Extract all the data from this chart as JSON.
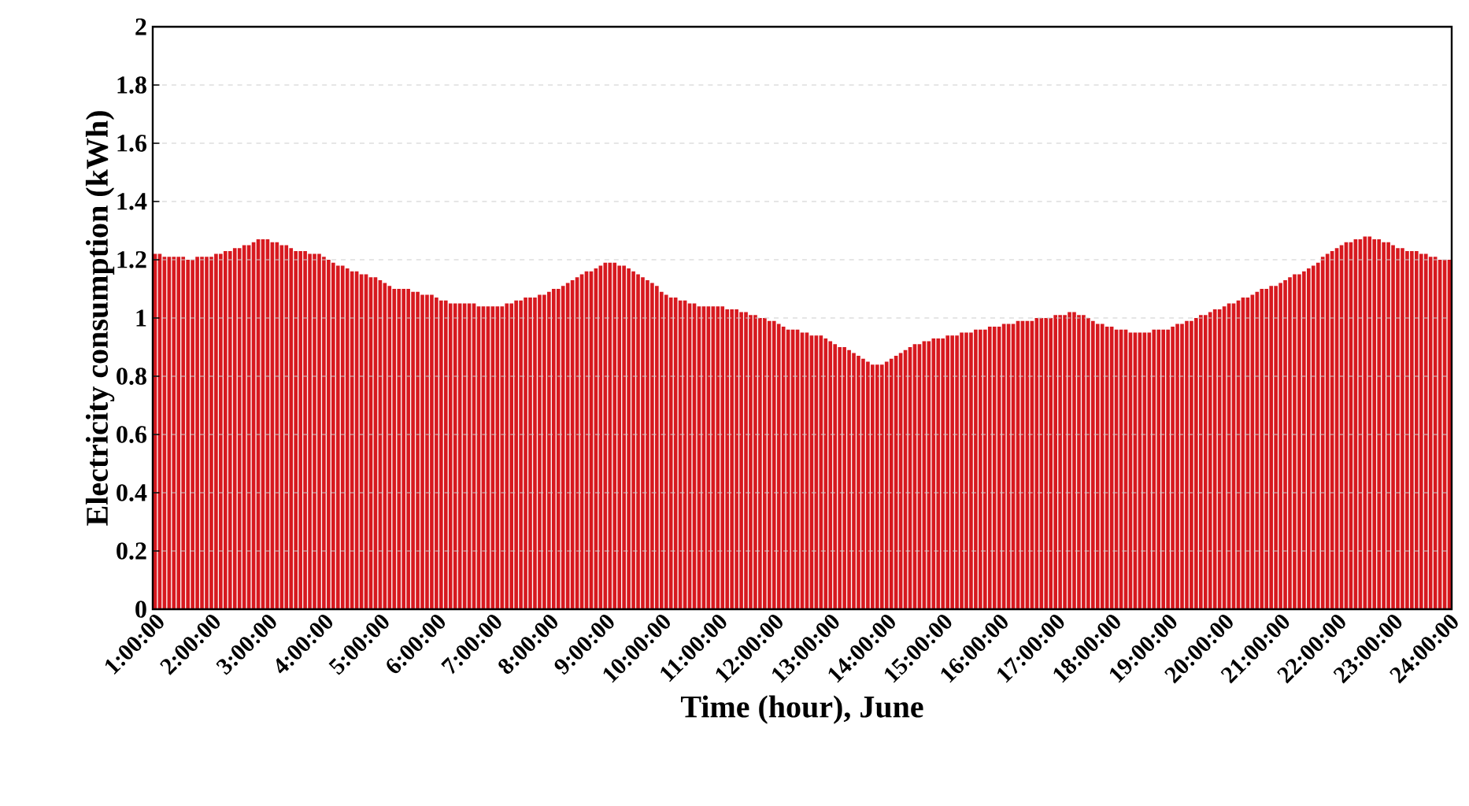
{
  "chart_data": {
    "type": "bar",
    "xlabel": "Time (hour), June",
    "ylabel": "Electricity consumption (kWh)",
    "color": "#d7191f",
    "grid": "y",
    "ylim": [
      0,
      2
    ],
    "yticks": [
      0,
      0.2,
      0.4,
      0.6,
      0.8,
      1,
      1.2,
      1.4,
      1.6,
      1.8,
      2
    ],
    "categories": [
      "1:00:00",
      null,
      null,
      null,
      null,
      null,
      null,
      null,
      null,
      null,
      null,
      null,
      "2:00:00",
      null,
      null,
      null,
      null,
      null,
      null,
      null,
      null,
      null,
      null,
      null,
      "3:00:00",
      null,
      null,
      null,
      null,
      null,
      null,
      null,
      null,
      null,
      null,
      null,
      "4:00:00",
      null,
      null,
      null,
      null,
      null,
      null,
      null,
      null,
      null,
      null,
      null,
      "5:00:00",
      null,
      null,
      null,
      null,
      null,
      null,
      null,
      null,
      null,
      null,
      null,
      "6:00:00",
      null,
      null,
      null,
      null,
      null,
      null,
      null,
      null,
      null,
      null,
      null,
      "7:00:00",
      null,
      null,
      null,
      null,
      null,
      null,
      null,
      null,
      null,
      null,
      null,
      "8:00:00",
      null,
      null,
      null,
      null,
      null,
      null,
      null,
      null,
      null,
      null,
      null,
      "9:00:00",
      null,
      null,
      null,
      null,
      null,
      null,
      null,
      null,
      null,
      null,
      null,
      "10:00:00",
      null,
      null,
      null,
      null,
      null,
      null,
      null,
      null,
      null,
      null,
      null,
      "11:00:00",
      null,
      null,
      null,
      null,
      null,
      null,
      null,
      null,
      null,
      null,
      null,
      "12:00:00",
      null,
      null,
      null,
      null,
      null,
      null,
      null,
      null,
      null,
      null,
      null,
      "13:00:00",
      null,
      null,
      null,
      null,
      null,
      null,
      null,
      null,
      null,
      null,
      null,
      "14:00:00",
      null,
      null,
      null,
      null,
      null,
      null,
      null,
      null,
      null,
      null,
      null,
      "15:00:00",
      null,
      null,
      null,
      null,
      null,
      null,
      null,
      null,
      null,
      null,
      null,
      "16:00:00",
      null,
      null,
      null,
      null,
      null,
      null,
      null,
      null,
      null,
      null,
      null,
      "17:00:00",
      null,
      null,
      null,
      null,
      null,
      null,
      null,
      null,
      null,
      null,
      null,
      "18:00:00",
      null,
      null,
      null,
      null,
      null,
      null,
      null,
      null,
      null,
      null,
      null,
      "19:00:00",
      null,
      null,
      null,
      null,
      null,
      null,
      null,
      null,
      null,
      null,
      null,
      "20:00:00",
      null,
      null,
      null,
      null,
      null,
      null,
      null,
      null,
      null,
      null,
      null,
      "21:00:00",
      null,
      null,
      null,
      null,
      null,
      null,
      null,
      null,
      null,
      null,
      null,
      "22:00:00",
      null,
      null,
      null,
      null,
      null,
      null,
      null,
      null,
      null,
      null,
      null,
      "23:00:00",
      null,
      null,
      null,
      null,
      null,
      null,
      null,
      null,
      null,
      null,
      null,
      "24:00:00"
    ],
    "values": [
      1.22,
      1.22,
      1.21,
      1.21,
      1.21,
      1.21,
      1.21,
      1.2,
      1.2,
      1.21,
      1.21,
      1.21,
      1.21,
      1.22,
      1.22,
      1.23,
      1.23,
      1.24,
      1.24,
      1.25,
      1.25,
      1.26,
      1.27,
      1.27,
      1.27,
      1.26,
      1.26,
      1.25,
      1.25,
      1.24,
      1.23,
      1.23,
      1.23,
      1.22,
      1.22,
      1.22,
      1.21,
      1.2,
      1.19,
      1.18,
      1.18,
      1.17,
      1.16,
      1.16,
      1.15,
      1.15,
      1.14,
      1.14,
      1.13,
      1.12,
      1.11,
      1.1,
      1.1,
      1.1,
      1.1,
      1.09,
      1.09,
      1.08,
      1.08,
      1.08,
      1.07,
      1.06,
      1.06,
      1.05,
      1.05,
      1.05,
      1.05,
      1.05,
      1.05,
      1.04,
      1.04,
      1.04,
      1.04,
      1.04,
      1.04,
      1.05,
      1.05,
      1.06,
      1.06,
      1.07,
      1.07,
      1.07,
      1.08,
      1.08,
      1.09,
      1.1,
      1.1,
      1.11,
      1.12,
      1.13,
      1.14,
      1.15,
      1.16,
      1.16,
      1.17,
      1.18,
      1.19,
      1.19,
      1.19,
      1.18,
      1.18,
      1.17,
      1.16,
      1.15,
      1.14,
      1.13,
      1.12,
      1.11,
      1.09,
      1.08,
      1.07,
      1.07,
      1.06,
      1.06,
      1.05,
      1.05,
      1.04,
      1.04,
      1.04,
      1.04,
      1.04,
      1.04,
      1.03,
      1.03,
      1.03,
      1.02,
      1.02,
      1.01,
      1.01,
      1.0,
      1.0,
      0.99,
      0.99,
      0.98,
      0.97,
      0.96,
      0.96,
      0.96,
      0.95,
      0.95,
      0.94,
      0.94,
      0.94,
      0.93,
      0.92,
      0.91,
      0.9,
      0.9,
      0.89,
      0.88,
      0.87,
      0.86,
      0.85,
      0.84,
      0.84,
      0.84,
      0.85,
      0.86,
      0.87,
      0.88,
      0.89,
      0.9,
      0.91,
      0.91,
      0.92,
      0.92,
      0.93,
      0.93,
      0.93,
      0.94,
      0.94,
      0.94,
      0.95,
      0.95,
      0.95,
      0.96,
      0.96,
      0.96,
      0.97,
      0.97,
      0.97,
      0.98,
      0.98,
      0.98,
      0.99,
      0.99,
      0.99,
      0.99,
      1.0,
      1.0,
      1.0,
      1.0,
      1.01,
      1.01,
      1.01,
      1.02,
      1.02,
      1.01,
      1.01,
      1.0,
      0.99,
      0.98,
      0.98,
      0.97,
      0.97,
      0.96,
      0.96,
      0.96,
      0.95,
      0.95,
      0.95,
      0.95,
      0.95,
      0.96,
      0.96,
      0.96,
      0.96,
      0.97,
      0.98,
      0.98,
      0.99,
      0.99,
      1.0,
      1.01,
      1.01,
      1.02,
      1.03,
      1.03,
      1.04,
      1.05,
      1.05,
      1.06,
      1.07,
      1.07,
      1.08,
      1.09,
      1.1,
      1.1,
      1.11,
      1.11,
      1.12,
      1.13,
      1.14,
      1.15,
      1.15,
      1.16,
      1.17,
      1.18,
      1.19,
      1.21,
      1.22,
      1.23,
      1.24,
      1.25,
      1.26,
      1.26,
      1.27,
      1.27,
      1.28,
      1.28,
      1.27,
      1.27,
      1.26,
      1.26,
      1.25,
      1.24,
      1.24,
      1.23,
      1.23,
      1.23,
      1.22,
      1.22,
      1.21,
      1.21,
      1.2,
      1.2,
      1.2
    ]
  }
}
